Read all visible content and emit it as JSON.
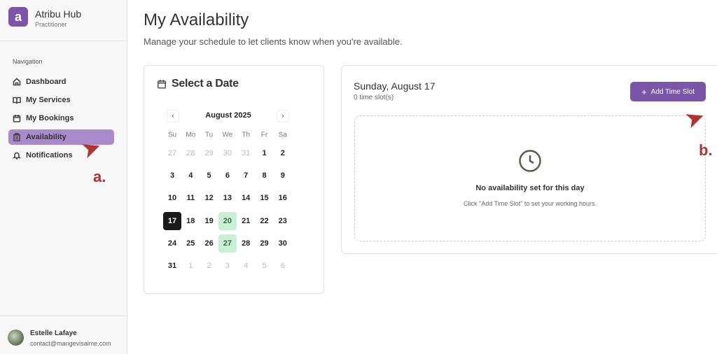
{
  "app": {
    "name": "Atribu Hub",
    "role": "Practitioner",
    "logo_letter": "a",
    "brand_color": "#7b55a8"
  },
  "sidebar": {
    "section_label": "Navigation",
    "items": [
      {
        "label": "Dashboard",
        "icon": "home-icon"
      },
      {
        "label": "My Services",
        "icon": "book-icon"
      },
      {
        "label": "My Bookings",
        "icon": "calendar-icon"
      },
      {
        "label": "Availability",
        "icon": "clipboard-icon",
        "active": true
      },
      {
        "label": "Notifications",
        "icon": "bell-icon"
      }
    ],
    "user": {
      "name": "Estelle Lafaye",
      "email": "contact@mangevisaime.com"
    }
  },
  "page": {
    "title": "My Availability",
    "subtitle": "Manage your schedule to let clients know when you're available."
  },
  "calendar": {
    "heading": "Select a Date",
    "month": "August 2025",
    "weekdays": [
      "Su",
      "Mo",
      "Tu",
      "We",
      "Th",
      "Fr",
      "Sa"
    ],
    "weeks": [
      [
        "27",
        "28",
        "29",
        "30",
        "31",
        "1",
        "2"
      ],
      [
        "3",
        "4",
        "5",
        "6",
        "7",
        "8",
        "9"
      ],
      [
        "10",
        "11",
        "12",
        "13",
        "14",
        "15",
        "16"
      ],
      [
        "17",
        "18",
        "19",
        "20",
        "21",
        "22",
        "23"
      ],
      [
        "24",
        "25",
        "26",
        "27",
        "28",
        "29",
        "30"
      ],
      [
        "31",
        "1",
        "2",
        "3",
        "4",
        "5",
        "6"
      ]
    ],
    "selected": "17",
    "available": [
      "20",
      "27"
    ]
  },
  "day": {
    "title": "Sunday, August 17",
    "count": "0 time slot(s)",
    "add_button": "Add Time Slot",
    "empty_title": "No availability set for this day",
    "empty_hint": "Click \"Add Time Slot\" to set your working hours."
  },
  "annotations": {
    "a": "a.",
    "b": "b.",
    "color": "#b3332f"
  }
}
